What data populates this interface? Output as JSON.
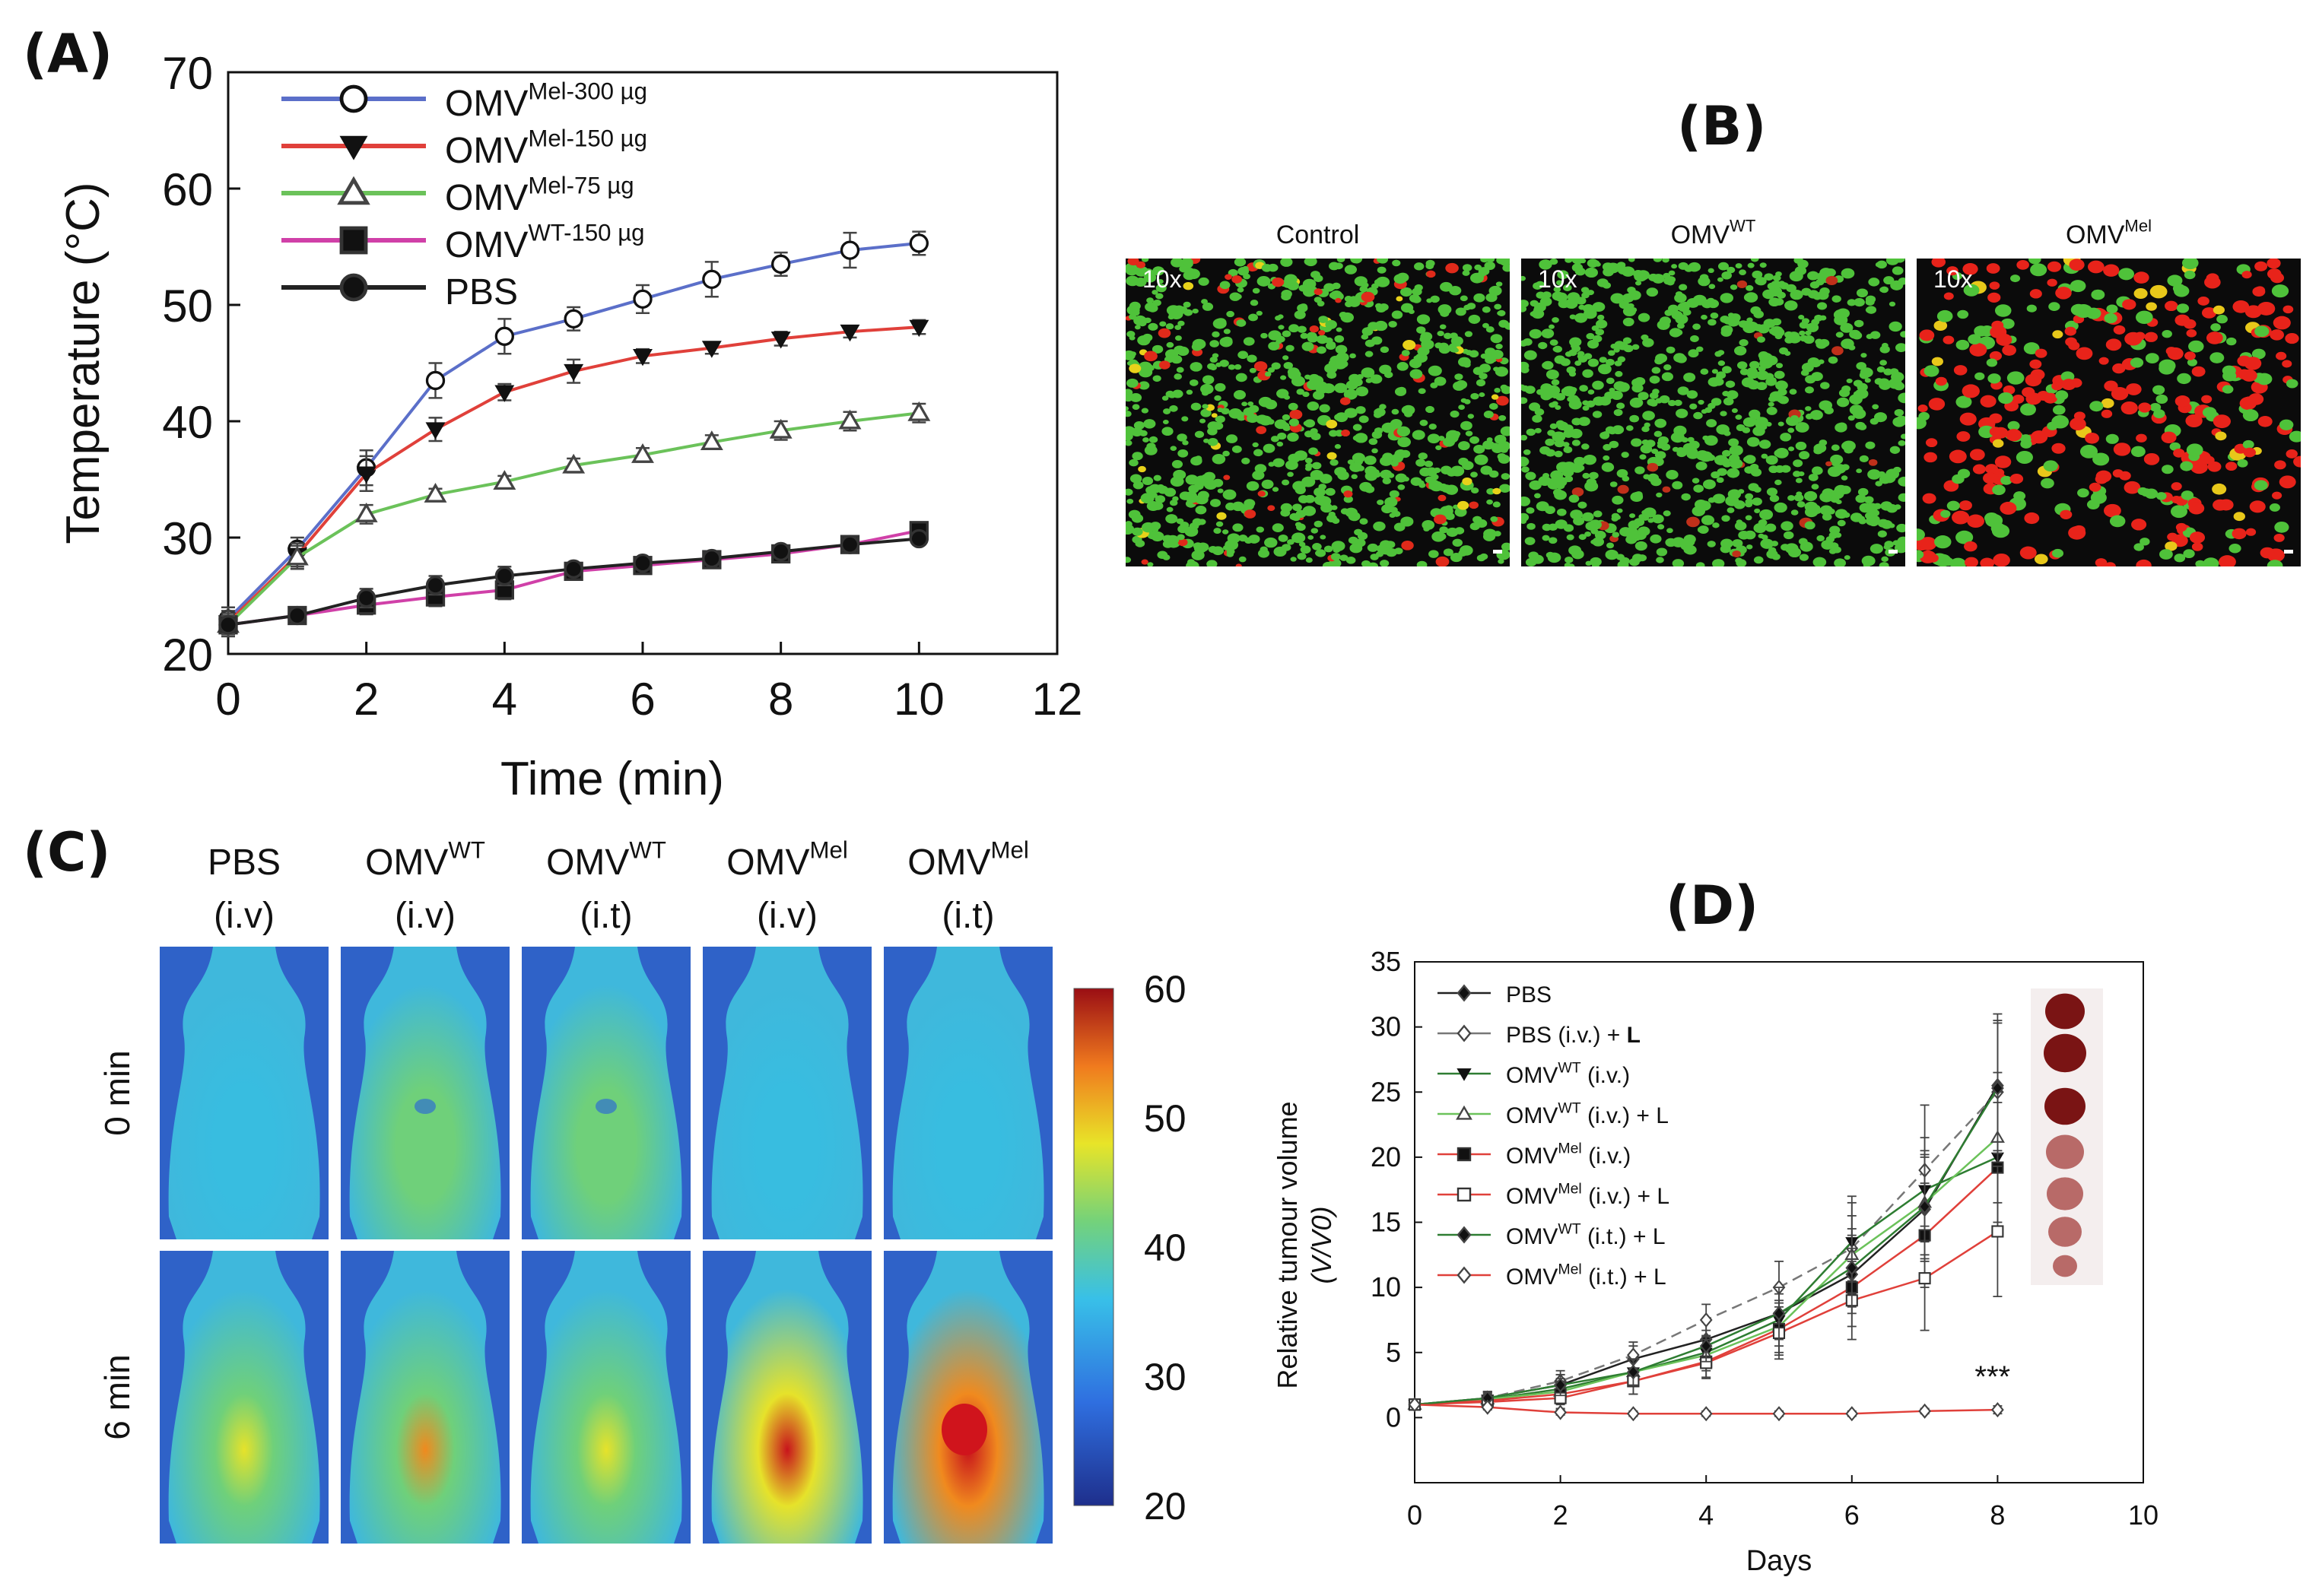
{
  "panel_labels": {
    "a": "(A)",
    "b": "(B)",
    "c": "(C)",
    "d": "(D)"
  },
  "chart_data": [
    {
      "id": "A",
      "type": "line",
      "title": "",
      "xlabel": "Time (min)",
      "ylabel": "Temperature (°C)",
      "xlim": [
        0,
        12
      ],
      "ylim": [
        20,
        70
      ],
      "xticks": [
        0,
        2,
        4,
        6,
        8,
        10,
        12
      ],
      "yticks": [
        20,
        30,
        40,
        50,
        60,
        70
      ],
      "x": [
        0,
        1,
        2,
        3,
        4,
        5,
        6,
        7,
        8,
        9,
        10
      ],
      "series": [
        {
          "name_base": "OMV",
          "name_sup": "Mel-300 µg",
          "color": "#5b6fc9",
          "marker": "circle-open",
          "values": [
            23,
            29,
            36,
            43.5,
            47.3,
            48.8,
            50.5,
            52.2,
            53.5,
            54.7,
            55.3
          ],
          "errors": [
            1,
            1,
            1.5,
            1.5,
            1.5,
            1,
            1.2,
            1.5,
            1,
            1.5,
            1
          ]
        },
        {
          "name_base": "OMV",
          "name_sup": "Mel-150 µg",
          "color": "#e0403a",
          "marker": "triangle-down",
          "values": [
            22.7,
            28.5,
            35.5,
            39.3,
            42.5,
            44.3,
            45.6,
            46.3,
            47.1,
            47.7,
            48.1
          ],
          "errors": [
            1,
            1,
            1.5,
            1,
            0.7,
            1,
            0.6,
            0.5,
            0.6,
            0.5,
            0.6
          ]
        },
        {
          "name_base": "OMV",
          "name_sup": "Mel-75 µg",
          "color": "#6bc25a",
          "marker": "triangle-open",
          "values": [
            22.5,
            28.3,
            32,
            33.7,
            34.8,
            36.2,
            37.1,
            38.2,
            39.2,
            40,
            40.7
          ],
          "errors": [
            1,
            1,
            0.8,
            0.5,
            0.5,
            0.6,
            0.6,
            0.6,
            0.8,
            0.8,
            0.8
          ]
        },
        {
          "name_base": "OMV",
          "name_sup": "WT-150 µg",
          "color": "#d040a8",
          "marker": "square",
          "values": [
            22.5,
            23.3,
            24.2,
            24.9,
            25.5,
            27.1,
            27.6,
            28.1,
            28.6,
            29.4,
            30.6
          ],
          "errors": [
            0.8,
            0.5,
            0.8,
            0.8,
            0.8,
            0.5,
            0.5,
            0.5,
            0.5,
            0.5,
            0.6
          ]
        },
        {
          "name_base": "PBS",
          "name_sup": "",
          "color": "#222222",
          "marker": "circle",
          "values": [
            22.5,
            23.3,
            24.8,
            25.9,
            26.7,
            27.3,
            27.8,
            28.2,
            28.8,
            29.4,
            29.9
          ],
          "errors": [
            0.8,
            0.5,
            0.8,
            0.8,
            0.8,
            0.5,
            0.5,
            0.5,
            0.5,
            0.5,
            0.5
          ]
        }
      ]
    },
    {
      "id": "D",
      "type": "line",
      "title": "",
      "xlabel": "Days",
      "ylabel": "Relative tumour volume",
      "ylabel2_sub": "(V/V0)",
      "xlim": [
        0,
        10
      ],
      "ylim": [
        -5,
        35
      ],
      "xticks": [
        0,
        2,
        4,
        6,
        8,
        10
      ],
      "yticks": [
        0,
        5,
        10,
        15,
        20,
        25,
        30,
        35
      ],
      "x": [
        0,
        1,
        2,
        3,
        4,
        5,
        6,
        7,
        8
      ],
      "annotation": "***",
      "series": [
        {
          "label": "PBS",
          "sup": "",
          "rest": "",
          "color": "#222222",
          "marker": "diamond",
          "dash": false,
          "values": [
            1,
            1.5,
            2.5,
            4.5,
            6,
            8,
            11,
            16,
            25.5
          ],
          "errors": [
            0,
            0.5,
            0.8,
            1,
            1.5,
            2,
            3,
            4,
            5
          ]
        },
        {
          "label": "PBS (i.v.) + ",
          "sup": "",
          "rest": "L",
          "color": "#777777",
          "marker": "diamond-open",
          "dash": true,
          "values": [
            1,
            1.5,
            2.8,
            4.8,
            7.5,
            10,
            13,
            19,
            25
          ],
          "errors": [
            0,
            0.5,
            0.8,
            1,
            1.2,
            2,
            4,
            5,
            6
          ]
        },
        {
          "label": "OMV",
          "sup": "WT",
          "rest": " (i.v.)",
          "color": "#2e7d32",
          "marker": "triangle-down",
          "dash": false,
          "values": [
            1,
            1.4,
            2.2,
            3.5,
            5,
            7.5,
            13.5,
            17.5,
            20
          ],
          "errors": [
            0,
            0.5,
            0.8,
            1,
            1.2,
            2,
            3,
            4,
            5
          ]
        },
        {
          "label": "OMV",
          "sup": "WT",
          "rest": " (i.v.) + L",
          "color": "#6bc25a",
          "marker": "triangle-open",
          "dash": false,
          "values": [
            1,
            1.4,
            2,
            3.5,
            4.8,
            7,
            12.5,
            16.5,
            21.5
          ],
          "errors": [
            0,
            0.5,
            0.8,
            1,
            1.2,
            2,
            3,
            4,
            5
          ]
        },
        {
          "label": "OMV",
          "sup": "Mel",
          "rest": " (i.v.)",
          "color": "#e0403a",
          "marker": "square",
          "dash": false,
          "values": [
            1,
            1.3,
            1.8,
            2.8,
            4.3,
            6.8,
            10,
            14,
            19.2
          ],
          "errors": [
            0,
            0.5,
            0.8,
            1,
            1.2,
            2,
            3,
            4,
            5
          ]
        },
        {
          "label": "OMV",
          "sup": "Mel",
          "rest": " (i.v.) + L",
          "color": "#e0403a",
          "marker": "square-open",
          "dash": false,
          "values": [
            1,
            1.2,
            1.5,
            2.8,
            4.2,
            6.5,
            9,
            10.7,
            14.3
          ],
          "errors": [
            0,
            0.5,
            0.8,
            1,
            1.2,
            2,
            3,
            4,
            5
          ]
        },
        {
          "label": "OMV",
          "sup": "WT",
          "rest": " (i.t.) + L",
          "color": "#2e7d32",
          "marker": "diamond",
          "dash": false,
          "values": [
            1,
            1.5,
            2.5,
            3.5,
            5.5,
            8,
            11.5,
            16.2,
            25.3
          ],
          "errors": [
            0,
            0.5,
            0.8,
            1,
            1.2,
            2,
            3,
            4,
            5
          ]
        },
        {
          "label": "OMV",
          "sup": "Mel",
          "rest": " (i.t.) + L",
          "color": "#e0403a",
          "marker": "diamond-open",
          "dash": false,
          "values": [
            1,
            0.8,
            0.4,
            0.3,
            0.3,
            0.3,
            0.3,
            0.5,
            0.6
          ],
          "errors": [
            0,
            0.2,
            0.2,
            0.2,
            0.2,
            0.2,
            0.2,
            0.2,
            0.3
          ]
        }
      ]
    },
    {
      "id": "C-colorbar",
      "type": "heatmap",
      "title": "",
      "colorbar_ticks": [
        60,
        50,
        40,
        30,
        20
      ],
      "range": [
        20,
        60
      ]
    }
  ],
  "panel_b": {
    "columns": [
      {
        "base": "Control",
        "sup": "",
        "mag": "10x",
        "kind": "control"
      },
      {
        "base": "OMV",
        "sup": "WT",
        "mag": "10x",
        "kind": "wt"
      },
      {
        "base": "OMV",
        "sup": "Mel",
        "mag": "10x",
        "kind": "mel"
      }
    ]
  },
  "panel_c": {
    "columns": [
      {
        "line1": "PBS",
        "sup": "",
        "line2": "(i.v)",
        "peak_top": 0.0,
        "peak_bottom": 0.45
      },
      {
        "line1": "OMV",
        "sup": "WT",
        "line2": "(i.v)",
        "peak_top": 0.05,
        "peak_bottom": 0.5
      },
      {
        "line1": "OMV",
        "sup": "WT",
        "line2": "(i.t)",
        "peak_top": 0.05,
        "peak_bottom": 0.45
      },
      {
        "line1": "OMV",
        "sup": "Mel",
        "line2": "(i.v)",
        "peak_top": 0.0,
        "peak_bottom": 0.78
      },
      {
        "line1": "OMV",
        "sup": "Mel",
        "line2": "(i.t)",
        "peak_top": 0.0,
        "peak_bottom": 1.0
      }
    ],
    "rows": [
      "0 min",
      "6 min"
    ]
  }
}
